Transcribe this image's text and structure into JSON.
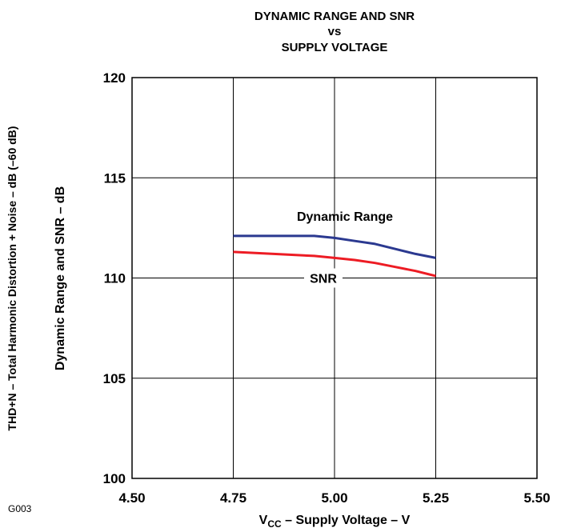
{
  "figure_code": "G003",
  "chart_data": {
    "type": "line",
    "title_lines": [
      "DYNAMIC RANGE AND SNR",
      "vs",
      "SUPPLY VOLTAGE"
    ],
    "xlabel": {
      "main": "V",
      "sub": "CC",
      "rest": " – Supply Voltage – V"
    },
    "ylabel": "Dynamic Range and SNR – dB",
    "ylabel_secondary": "THD+N – Total Harmonic Distortion + Noise – dB (–60 dB)",
    "xlim": [
      4.5,
      5.5
    ],
    "ylim": [
      100,
      120
    ],
    "xticks": [
      4.5,
      4.75,
      5.0,
      5.25,
      5.5
    ],
    "xtick_labels": [
      "4.50",
      "4.75",
      "5.00",
      "5.25",
      "5.50"
    ],
    "yticks": [
      100,
      105,
      110,
      115,
      120
    ],
    "ytick_labels": [
      "100",
      "105",
      "110",
      "115",
      "120"
    ],
    "grid": true,
    "series": [
      {
        "name": "Dynamic Range",
        "color": "#2b3990",
        "x": [
          4.75,
          4.85,
          4.95,
          5.0,
          5.05,
          5.1,
          5.15,
          5.2,
          5.25
        ],
        "y": [
          112.1,
          112.1,
          112.1,
          112.0,
          111.85,
          111.7,
          111.45,
          111.2,
          111.0
        ]
      },
      {
        "name": "SNR",
        "color": "#ed1c24",
        "x": [
          4.75,
          4.85,
          4.95,
          5.0,
          5.05,
          5.1,
          5.15,
          5.2,
          5.25
        ],
        "y": [
          111.3,
          111.2,
          111.1,
          111.0,
          110.9,
          110.75,
          110.55,
          110.35,
          110.1
        ]
      }
    ]
  }
}
